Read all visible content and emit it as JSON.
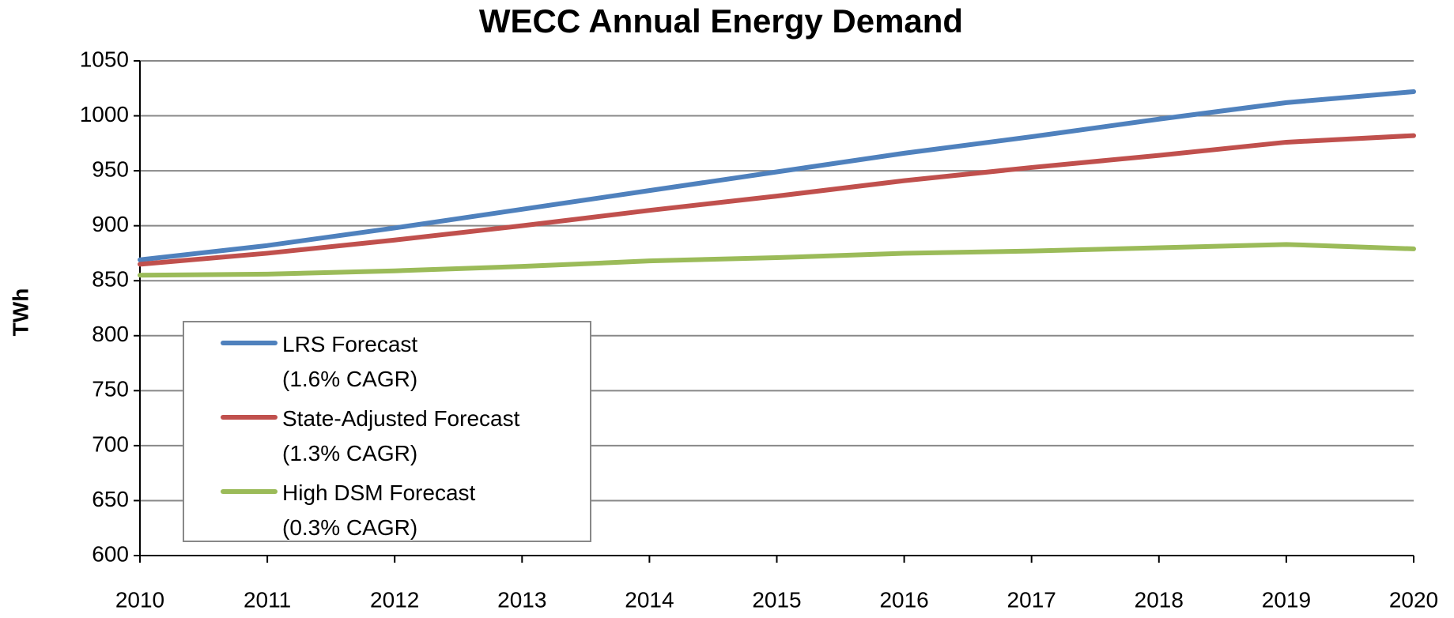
{
  "chart_data": {
    "type": "line",
    "title": "WECC Annual Energy Demand",
    "y_label": "TWh",
    "x": [
      2010,
      2011,
      2012,
      2013,
      2014,
      2015,
      2016,
      2017,
      2018,
      2019,
      2020
    ],
    "xlim": [
      2010,
      2020
    ],
    "xticks": [
      2010,
      2011,
      2012,
      2013,
      2014,
      2015,
      2016,
      2017,
      2018,
      2019,
      2020
    ],
    "ylim": [
      600,
      1050
    ],
    "yticks": [
      600,
      650,
      700,
      750,
      800,
      850,
      900,
      950,
      1000,
      1050
    ],
    "grid": true,
    "legend": "lower left",
    "series": [
      {
        "name": "LRS Forecast\n(1.6% CAGR)",
        "color": "#4f81bd",
        "values": [
          869,
          882,
          898,
          915,
          932,
          949,
          966,
          981,
          997,
          1012,
          1022
        ]
      },
      {
        "name": "State-Adjusted Forecast\n(1.3% CAGR)",
        "color": "#c0504d",
        "values": [
          865,
          875,
          887,
          900,
          914,
          927,
          941,
          953,
          964,
          976,
          982
        ]
      },
      {
        "name": "High DSM Forecast\n(0.3% CAGR)",
        "color": "#9bbb59",
        "values": [
          855,
          856,
          859,
          863,
          868,
          871,
          875,
          877,
          880,
          883,
          879
        ]
      }
    ]
  }
}
